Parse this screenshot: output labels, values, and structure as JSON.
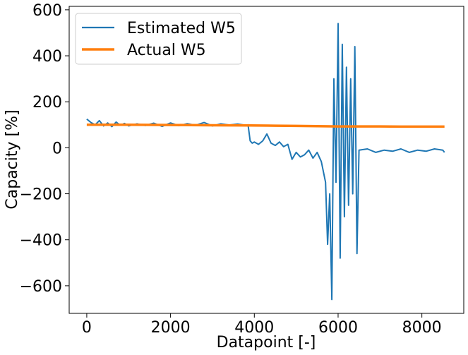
{
  "chart_data": {
    "type": "line",
    "xlabel": "Datapoint [-]",
    "ylabel": "Capacity [%]",
    "xlim": [
      -420,
      9000
    ],
    "ylim": [
      -720,
      615
    ],
    "xticks": [
      0,
      2000,
      4000,
      6000,
      8000
    ],
    "xtick_labels": [
      "0",
      "2000",
      "4000",
      "6000",
      "8000"
    ],
    "yticks": [
      600,
      400,
      200,
      0,
      -200,
      -400,
      -600
    ],
    "ytick_labels": [
      "600",
      "400",
      "200",
      "0",
      "−200",
      "−400",
      "−600"
    ],
    "grid": false,
    "legend_position": "top-left",
    "series": [
      {
        "name": "Estimated W5",
        "color": "#1f77b4",
        "x": [
          0,
          100,
          200,
          300,
          400,
          500,
          600,
          700,
          800,
          900,
          1000,
          1200,
          1400,
          1600,
          1800,
          2000,
          2200,
          2400,
          2600,
          2800,
          3000,
          3200,
          3400,
          3600,
          3800,
          3850,
          3900,
          3950,
          4000,
          4100,
          4200,
          4300,
          4400,
          4500,
          4600,
          4700,
          4800,
          4900,
          5000,
          5100,
          5200,
          5300,
          5400,
          5500,
          5600,
          5700,
          5750,
          5800,
          5850,
          5900,
          5950,
          6000,
          6050,
          6100,
          6150,
          6200,
          6250,
          6300,
          6350,
          6400,
          6450,
          6500,
          6700,
          6900,
          7100,
          7300,
          7500,
          7700,
          7900,
          8100,
          8300,
          8500,
          8540
        ],
        "y": [
          125,
          110,
          100,
          118,
          95,
          108,
          92,
          112,
          98,
          106,
          95,
          104,
          97,
          107,
          93,
          108,
          96,
          105,
          98,
          110,
          95,
          104,
          99,
          103,
          98,
          100,
          30,
          20,
          25,
          15,
          30,
          60,
          20,
          10,
          25,
          5,
          15,
          -50,
          -20,
          -40,
          -30,
          -10,
          -45,
          -20,
          -60,
          -150,
          -420,
          -200,
          -660,
          300,
          -150,
          540,
          -480,
          450,
          -300,
          350,
          -250,
          300,
          -200,
          440,
          -460,
          -10,
          -5,
          -20,
          -10,
          -15,
          -5,
          -20,
          -10,
          -15,
          -5,
          -10,
          -20
        ]
      },
      {
        "name": "Actual W5",
        "color": "#ff7f0e",
        "x": [
          0,
          1000,
          2000,
          3000,
          3900,
          4500,
          5000,
          5500,
          6000,
          6500,
          7000,
          7500,
          8000,
          8540
        ],
        "y": [
          100,
          100,
          99,
          98,
          97,
          96,
          95,
          94,
          93,
          93,
          93,
          92,
          92,
          92
        ]
      }
    ]
  }
}
